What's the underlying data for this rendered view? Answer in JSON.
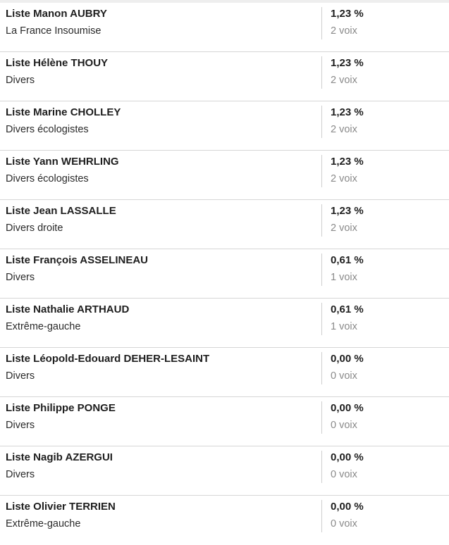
{
  "results": [
    {
      "list": "Liste Manon AUBRY",
      "party": "La France Insoumise",
      "percent": "1,23 %",
      "votes": "2 voix"
    },
    {
      "list": "Liste Hélène THOUY",
      "party": "Divers",
      "percent": "1,23 %",
      "votes": "2 voix"
    },
    {
      "list": "Liste Marine CHOLLEY",
      "party": "Divers écologistes",
      "percent": "1,23 %",
      "votes": "2 voix"
    },
    {
      "list": "Liste Yann WEHRLING",
      "party": "Divers écologistes",
      "percent": "1,23 %",
      "votes": "2 voix"
    },
    {
      "list": "Liste Jean LASSALLE",
      "party": "Divers droite",
      "percent": "1,23 %",
      "votes": "2 voix"
    },
    {
      "list": "Liste François ASSELINEAU",
      "party": "Divers",
      "percent": "0,61 %",
      "votes": "1 voix"
    },
    {
      "list": "Liste Nathalie ARTHAUD",
      "party": "Extrême-gauche",
      "percent": "0,61 %",
      "votes": "1 voix"
    },
    {
      "list": "Liste Léopold-Edouard DEHER-LESAINT",
      "party": "Divers",
      "percent": "0,00 %",
      "votes": "0 voix"
    },
    {
      "list": "Liste Philippe PONGE",
      "party": "Divers",
      "percent": "0,00 %",
      "votes": "0 voix"
    },
    {
      "list": "Liste Nagib AZERGUI",
      "party": "Divers",
      "percent": "0,00 %",
      "votes": "0 voix"
    },
    {
      "list": "Liste Olivier TERRIEN",
      "party": "Extrême-gauche",
      "percent": "0,00 %",
      "votes": "0 voix"
    }
  ]
}
